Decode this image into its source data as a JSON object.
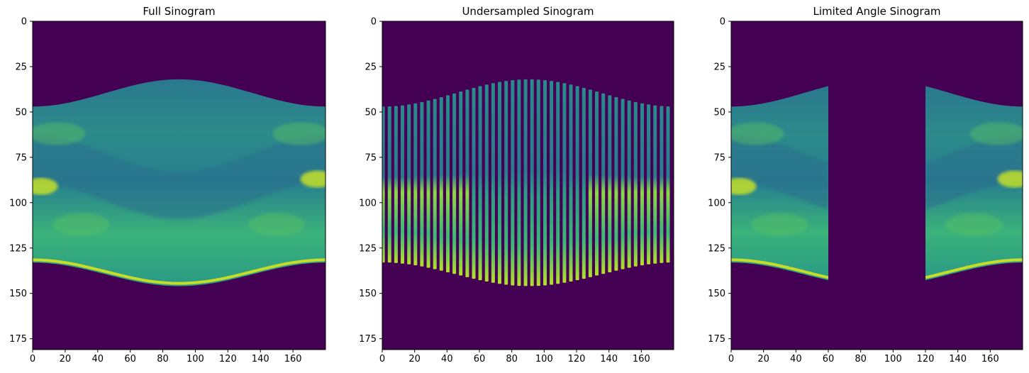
{
  "chart_data": [
    {
      "type": "heatmap",
      "title": "Full Sinogram",
      "xlabel": "",
      "ylabel": "",
      "xlim": [
        0,
        180
      ],
      "ylim": [
        181,
        0
      ],
      "xticks": [
        0,
        20,
        40,
        60,
        80,
        100,
        120,
        140,
        160
      ],
      "yticks": [
        0,
        25,
        50,
        75,
        100,
        125,
        150,
        175
      ],
      "colormap": "viridis",
      "grid": false,
      "sampling": "full",
      "angles_shown": [
        0,
        180
      ],
      "band_upper_edge": [
        [
          0,
          47
        ],
        [
          20,
          44
        ],
        [
          45,
          37
        ],
        [
          90,
          32
        ],
        [
          135,
          37
        ],
        [
          160,
          44
        ],
        [
          180,
          47
        ]
      ],
      "band_lower_edge": [
        [
          0,
          133
        ],
        [
          20,
          137
        ],
        [
          45,
          142
        ],
        [
          90,
          146
        ],
        [
          135,
          142
        ],
        [
          160,
          137
        ],
        [
          180,
          133
        ]
      ]
    },
    {
      "type": "heatmap",
      "title": "Undersampled Sinogram",
      "xlabel": "",
      "ylabel": "",
      "xlim": [
        0,
        180
      ],
      "ylim": [
        181,
        0
      ],
      "xticks": [
        0,
        20,
        40,
        60,
        80,
        100,
        120,
        140,
        160
      ],
      "yticks": [
        0,
        25,
        50,
        75,
        100,
        125,
        150,
        175
      ],
      "colormap": "viridis",
      "grid": false,
      "sampling": "every 4th angle",
      "angle_step": 4
    },
    {
      "type": "heatmap",
      "title": "Limited Angle Sinogram",
      "xlabel": "",
      "ylabel": "",
      "xlim": [
        0,
        180
      ],
      "ylim": [
        181,
        0
      ],
      "xticks": [
        0,
        20,
        40,
        60,
        80,
        100,
        120,
        140,
        160
      ],
      "yticks": [
        0,
        25,
        50,
        75,
        100,
        125,
        150,
        175
      ],
      "colormap": "viridis",
      "grid": false,
      "sampling": "limited angle",
      "angles_shown": [
        [
          0,
          60
        ],
        [
          120,
          180
        ]
      ],
      "missing_angles": [
        60,
        120
      ]
    }
  ],
  "colors": {
    "background": "#440154",
    "colormap_low": "#440154",
    "colormap_mid": "#21918c",
    "colormap_high": "#fde725"
  }
}
